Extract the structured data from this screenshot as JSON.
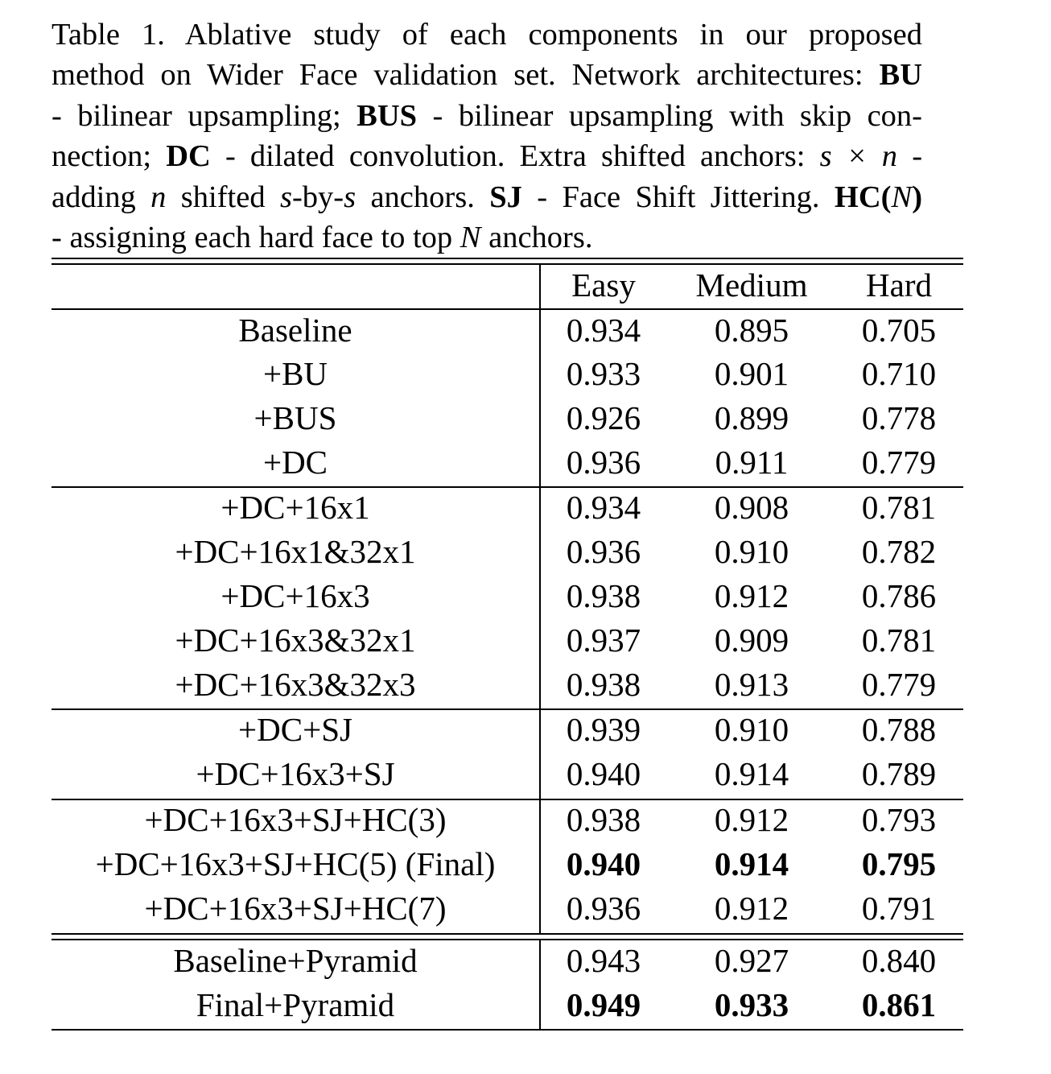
{
  "caption": {
    "line1": "Table 1. Ablative study of each components in our proposed",
    "line2_pre": "method on Wider Face validation set. Network architectures:",
    "line2_bold": "BU",
    "line3_pre": "- bilinear upsampling;",
    "line3_bold": "BUS",
    "line3_post": "- bilinear upsampling with skip con-",
    "line4_pre": "nection;",
    "line4_bold": "DC",
    "line4_mid": "- dilated convolution. Extra shifted anchors:",
    "line4_math": "s × n",
    "line4_post": "-",
    "line5_pre": "adding",
    "line5_n": "n",
    "line5_mid1": "shifted",
    "line5_s1": "s",
    "line5_mid2": "-by-",
    "line5_s2": "s",
    "line5_mid3": "anchors.",
    "line5_bold_sj": "SJ",
    "line5_mid4": "- Face Shift Jittering.",
    "line5_bold_hc": "HC(",
    "line5_hc_n": "N",
    "line5_bold_hc_close": ")",
    "line6_pre": "- assigning each hard face to top",
    "line6_n": "N",
    "line6_post": "anchors."
  },
  "table": {
    "headers": [
      "Easy",
      "Medium",
      "Hard"
    ],
    "rows": [
      {
        "method": "Baseline",
        "easy": "0.934",
        "medium": "0.895",
        "hard": "0.705",
        "bold": false
      },
      {
        "method": "+BU",
        "easy": "0.933",
        "medium": "0.901",
        "hard": "0.710",
        "bold": false
      },
      {
        "method": "+BUS",
        "easy": "0.926",
        "medium": "0.899",
        "hard": "0.778",
        "bold": false
      },
      {
        "method": "+DC",
        "easy": "0.936",
        "medium": "0.911",
        "hard": "0.779",
        "bold": false
      },
      {
        "method": "+DC+16x1",
        "easy": "0.934",
        "medium": "0.908",
        "hard": "0.781",
        "bold": false
      },
      {
        "method": "+DC+16x1&32x1",
        "easy": "0.936",
        "medium": "0.910",
        "hard": "0.782",
        "bold": false
      },
      {
        "method": "+DC+16x3",
        "easy": "0.938",
        "medium": "0.912",
        "hard": "0.786",
        "bold": false
      },
      {
        "method": "+DC+16x3&32x1",
        "easy": "0.937",
        "medium": "0.909",
        "hard": "0.781",
        "bold": false
      },
      {
        "method": "+DC+16x3&32x3",
        "easy": "0.938",
        "medium": "0.913",
        "hard": "0.779",
        "bold": false
      },
      {
        "method": "+DC+SJ",
        "easy": "0.939",
        "medium": "0.910",
        "hard": "0.788",
        "bold": false
      },
      {
        "method": "+DC+16x3+SJ",
        "easy": "0.940",
        "medium": "0.914",
        "hard": "0.789",
        "bold": false
      },
      {
        "method": "+DC+16x3+SJ+HC(3)",
        "easy": "0.938",
        "medium": "0.912",
        "hard": "0.793",
        "bold": false
      },
      {
        "method": "+DC+16x3+SJ+HC(5) (Final)",
        "easy": "0.940",
        "medium": "0.914",
        "hard": "0.795",
        "bold": true
      },
      {
        "method": "+DC+16x3+SJ+HC(7)",
        "easy": "0.936",
        "medium": "0.912",
        "hard": "0.791",
        "bold": false
      },
      {
        "method": "Baseline+Pyramid",
        "easy": "0.943",
        "medium": "0.927",
        "hard": "0.840",
        "bold": false
      },
      {
        "method": "Final+Pyramid",
        "easy": "0.949",
        "medium": "0.933",
        "hard": "0.861",
        "bold": true
      }
    ]
  }
}
